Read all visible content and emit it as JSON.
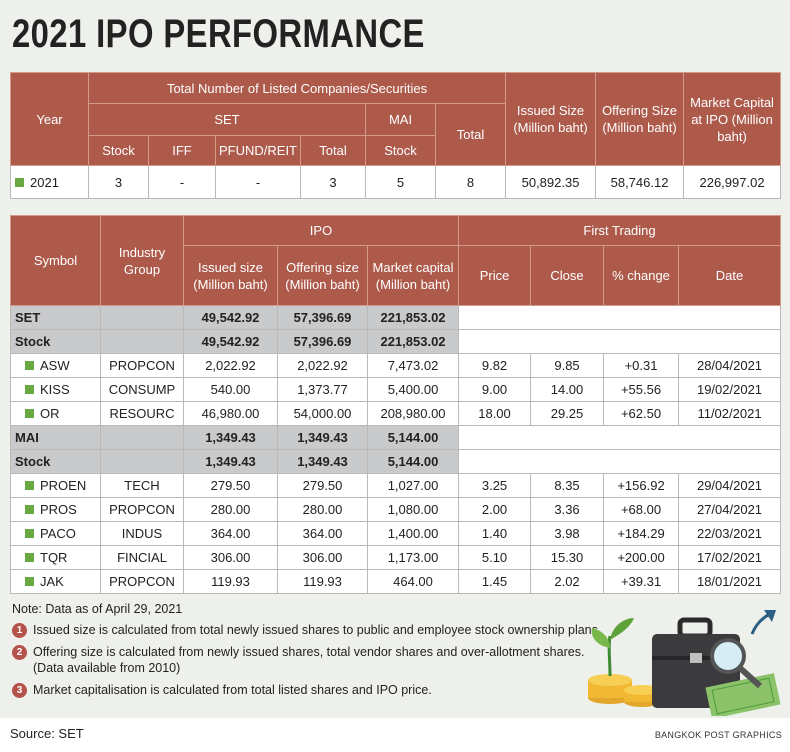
{
  "title": "2021 IPO PERFORMANCE",
  "summary_table": {
    "headers": {
      "year": "Year",
      "total_listed": "Total Number of Listed Companies/Securities",
      "set": "SET",
      "mai": "MAI",
      "total": "Total",
      "set_stock": "Stock",
      "iff": "IFF",
      "pfund_reit": "PFUND/REIT",
      "set_total": "Total",
      "mai_stock": "Stock",
      "issued_size": "Issued Size (Million baht)",
      "offering_size": "Offering Size (Million baht)",
      "market_capital": "Market Capital at IPO (Million baht)"
    },
    "row": [
      "2021",
      "3",
      "-",
      "-",
      "3",
      "5",
      "8",
      "50,892.35",
      "58,746.12",
      "226,997.02"
    ]
  },
  "ipo_table": {
    "headers": {
      "symbol": "Symbol",
      "industry_group": "Industry Group",
      "ipo": "IPO",
      "first_trading": "First Trading",
      "issued_size": "Issued size (Million baht)",
      "offering_size": "Offering size (Million baht)",
      "market_capital": "Market capital (Million baht)",
      "price": "Price",
      "close": "Close",
      "change": "% change",
      "date": "Date"
    },
    "sections": [
      {
        "label": "SET",
        "values": [
          "49,542.92",
          "57,396.69",
          "221,853.02"
        ],
        "groups": [
          {
            "label": "Stock",
            "values": [
              "49,542.92",
              "57,396.69",
              "221,853.02"
            ],
            "rows": [
              [
                "ASW",
                "PROPCON",
                "2,022.92",
                "2,022.92",
                "7,473.02",
                "9.82",
                "9.85",
                "+0.31",
                "28/04/2021"
              ],
              [
                "KISS",
                "CONSUMP",
                "540.00",
                "1,373.77",
                "5,400.00",
                "9.00",
                "14.00",
                "+55.56",
                "19/02/2021"
              ],
              [
                "OR",
                "RESOURC",
                "46,980.00",
                "54,000.00",
                "208,980.00",
                "18.00",
                "29.25",
                "+62.50",
                "11/02/2021"
              ]
            ]
          }
        ]
      },
      {
        "label": "MAI",
        "values": [
          "1,349.43",
          "1,349.43",
          "5,144.00"
        ],
        "groups": [
          {
            "label": "Stock",
            "values": [
              "1,349.43",
              "1,349.43",
              "5,144.00"
            ],
            "rows": [
              [
                "PROEN",
                "TECH",
                "279.50",
                "279.50",
                "1,027.00",
                "3.25",
                "8.35",
                "+156.92",
                "29/04/2021"
              ],
              [
                "PROS",
                "PROPCON",
                "280.00",
                "280.00",
                "1,080.00",
                "2.00",
                "3.36",
                "+68.00",
                "27/04/2021"
              ],
              [
                "PACO",
                "INDUS",
                "364.00",
                "364.00",
                "1,400.00",
                "1.40",
                "3.98",
                "+184.29",
                "22/03/2021"
              ],
              [
                "TQR",
                "FINCIAL",
                "306.00",
                "306.00",
                "1,173.00",
                "5.10",
                "15.30",
                "+200.00",
                "17/02/2021"
              ],
              [
                "JAK",
                "PROPCON",
                "119.93",
                "119.93",
                "464.00",
                "1.45",
                "2.02",
                "+39.31",
                "18/01/2021"
              ]
            ]
          }
        ]
      }
    ]
  },
  "note": "Note: Data as of April 29, 2021",
  "footnotes": [
    {
      "number": "1",
      "text": "Issued size is calculated from total newly issued shares to public and employee stock ownership plans."
    },
    {
      "number": "2",
      "text": "Offering size is calculated from newly issued shares, total vendor shares and over-allotment shares.",
      "detail": "(Data available from 2010)"
    },
    {
      "number": "3",
      "text": "Market capitalisation is calculated from total listed shares and IPO price."
    }
  ],
  "source": "Source: SET",
  "credit": "BANGKOK POST GRAPHICS"
}
